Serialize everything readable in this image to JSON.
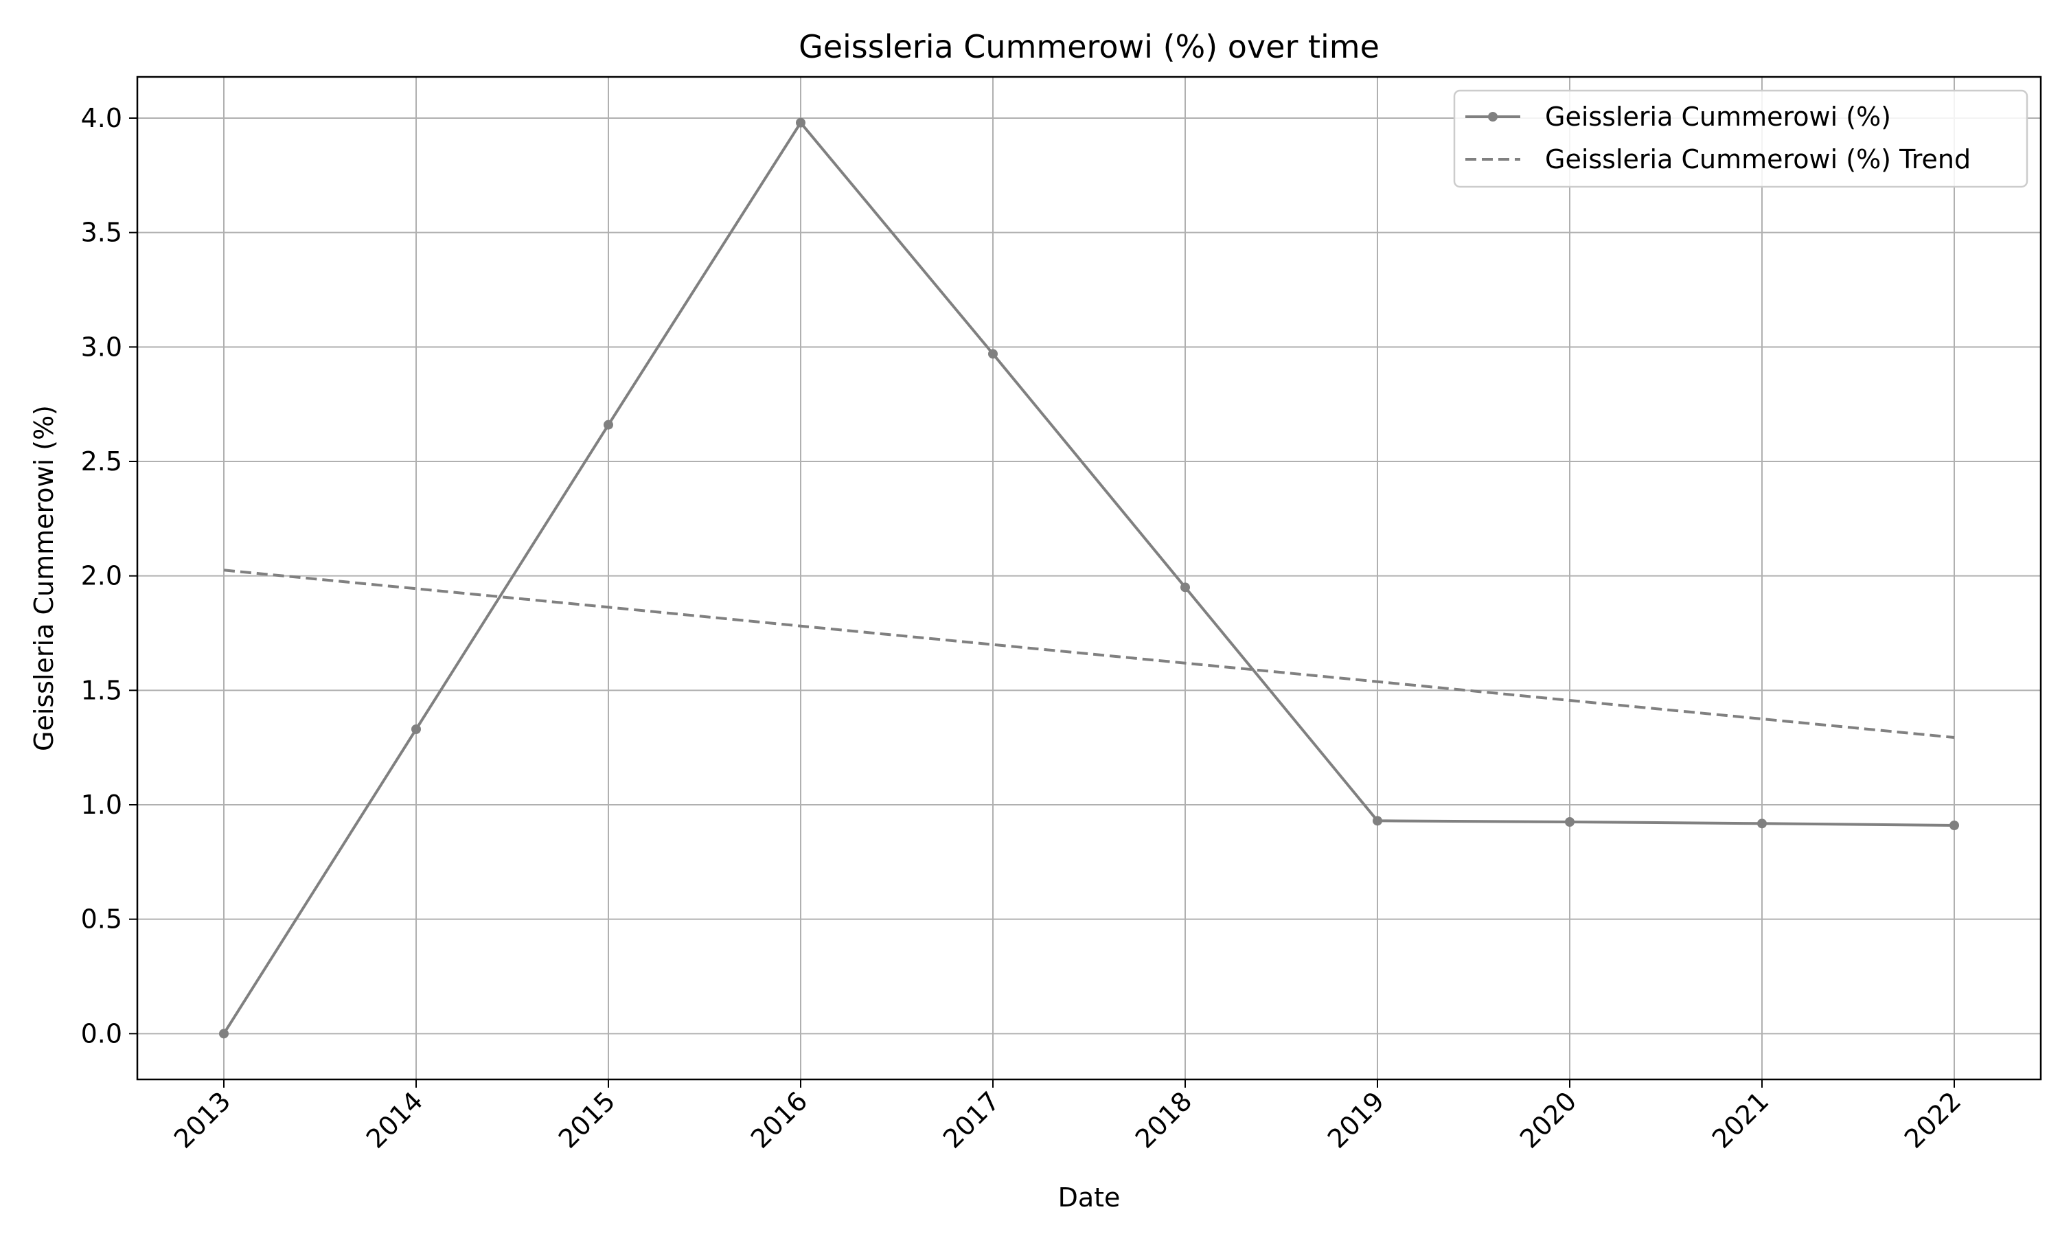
{
  "chart_data": {
    "type": "line",
    "title": "Geissleria Cummerowi (%) over time",
    "xlabel": "Date",
    "ylabel": "Geissleria Cummerowi (%)",
    "x": [
      2013,
      2014,
      2015,
      2016,
      2017,
      2018,
      2019,
      2020,
      2021,
      2022
    ],
    "xtick_labels": [
      "2013",
      "2014",
      "2015",
      "2016",
      "2017",
      "2018",
      "2019",
      "2020",
      "2021",
      "2022"
    ],
    "xlim": [
      2012.55,
      2022.45
    ],
    "ylim": [
      -0.2,
      4.18
    ],
    "yticks": [
      0.0,
      0.5,
      1.0,
      1.5,
      2.0,
      2.5,
      3.0,
      3.5,
      4.0
    ],
    "ytick_labels": [
      "0.0",
      "0.5",
      "1.0",
      "1.5",
      "2.0",
      "2.5",
      "3.0",
      "3.5",
      "4.0"
    ],
    "grid": true,
    "legend_position": "top-right",
    "series": [
      {
        "name": "Geissleria Cummerowi (%)",
        "style": "solid",
        "markers": true,
        "color": "#808080",
        "values": [
          0.0,
          1.33,
          2.66,
          3.98,
          2.97,
          1.95,
          0.93,
          0.925,
          0.918,
          0.91
        ]
      },
      {
        "name": "Geissleria Cummerowi (%) Trend",
        "style": "dashed",
        "markers": false,
        "color": "#808080",
        "values": [
          2.025,
          1.944,
          1.863,
          1.781,
          1.7,
          1.619,
          1.538,
          1.456,
          1.375,
          1.294
        ]
      }
    ]
  }
}
